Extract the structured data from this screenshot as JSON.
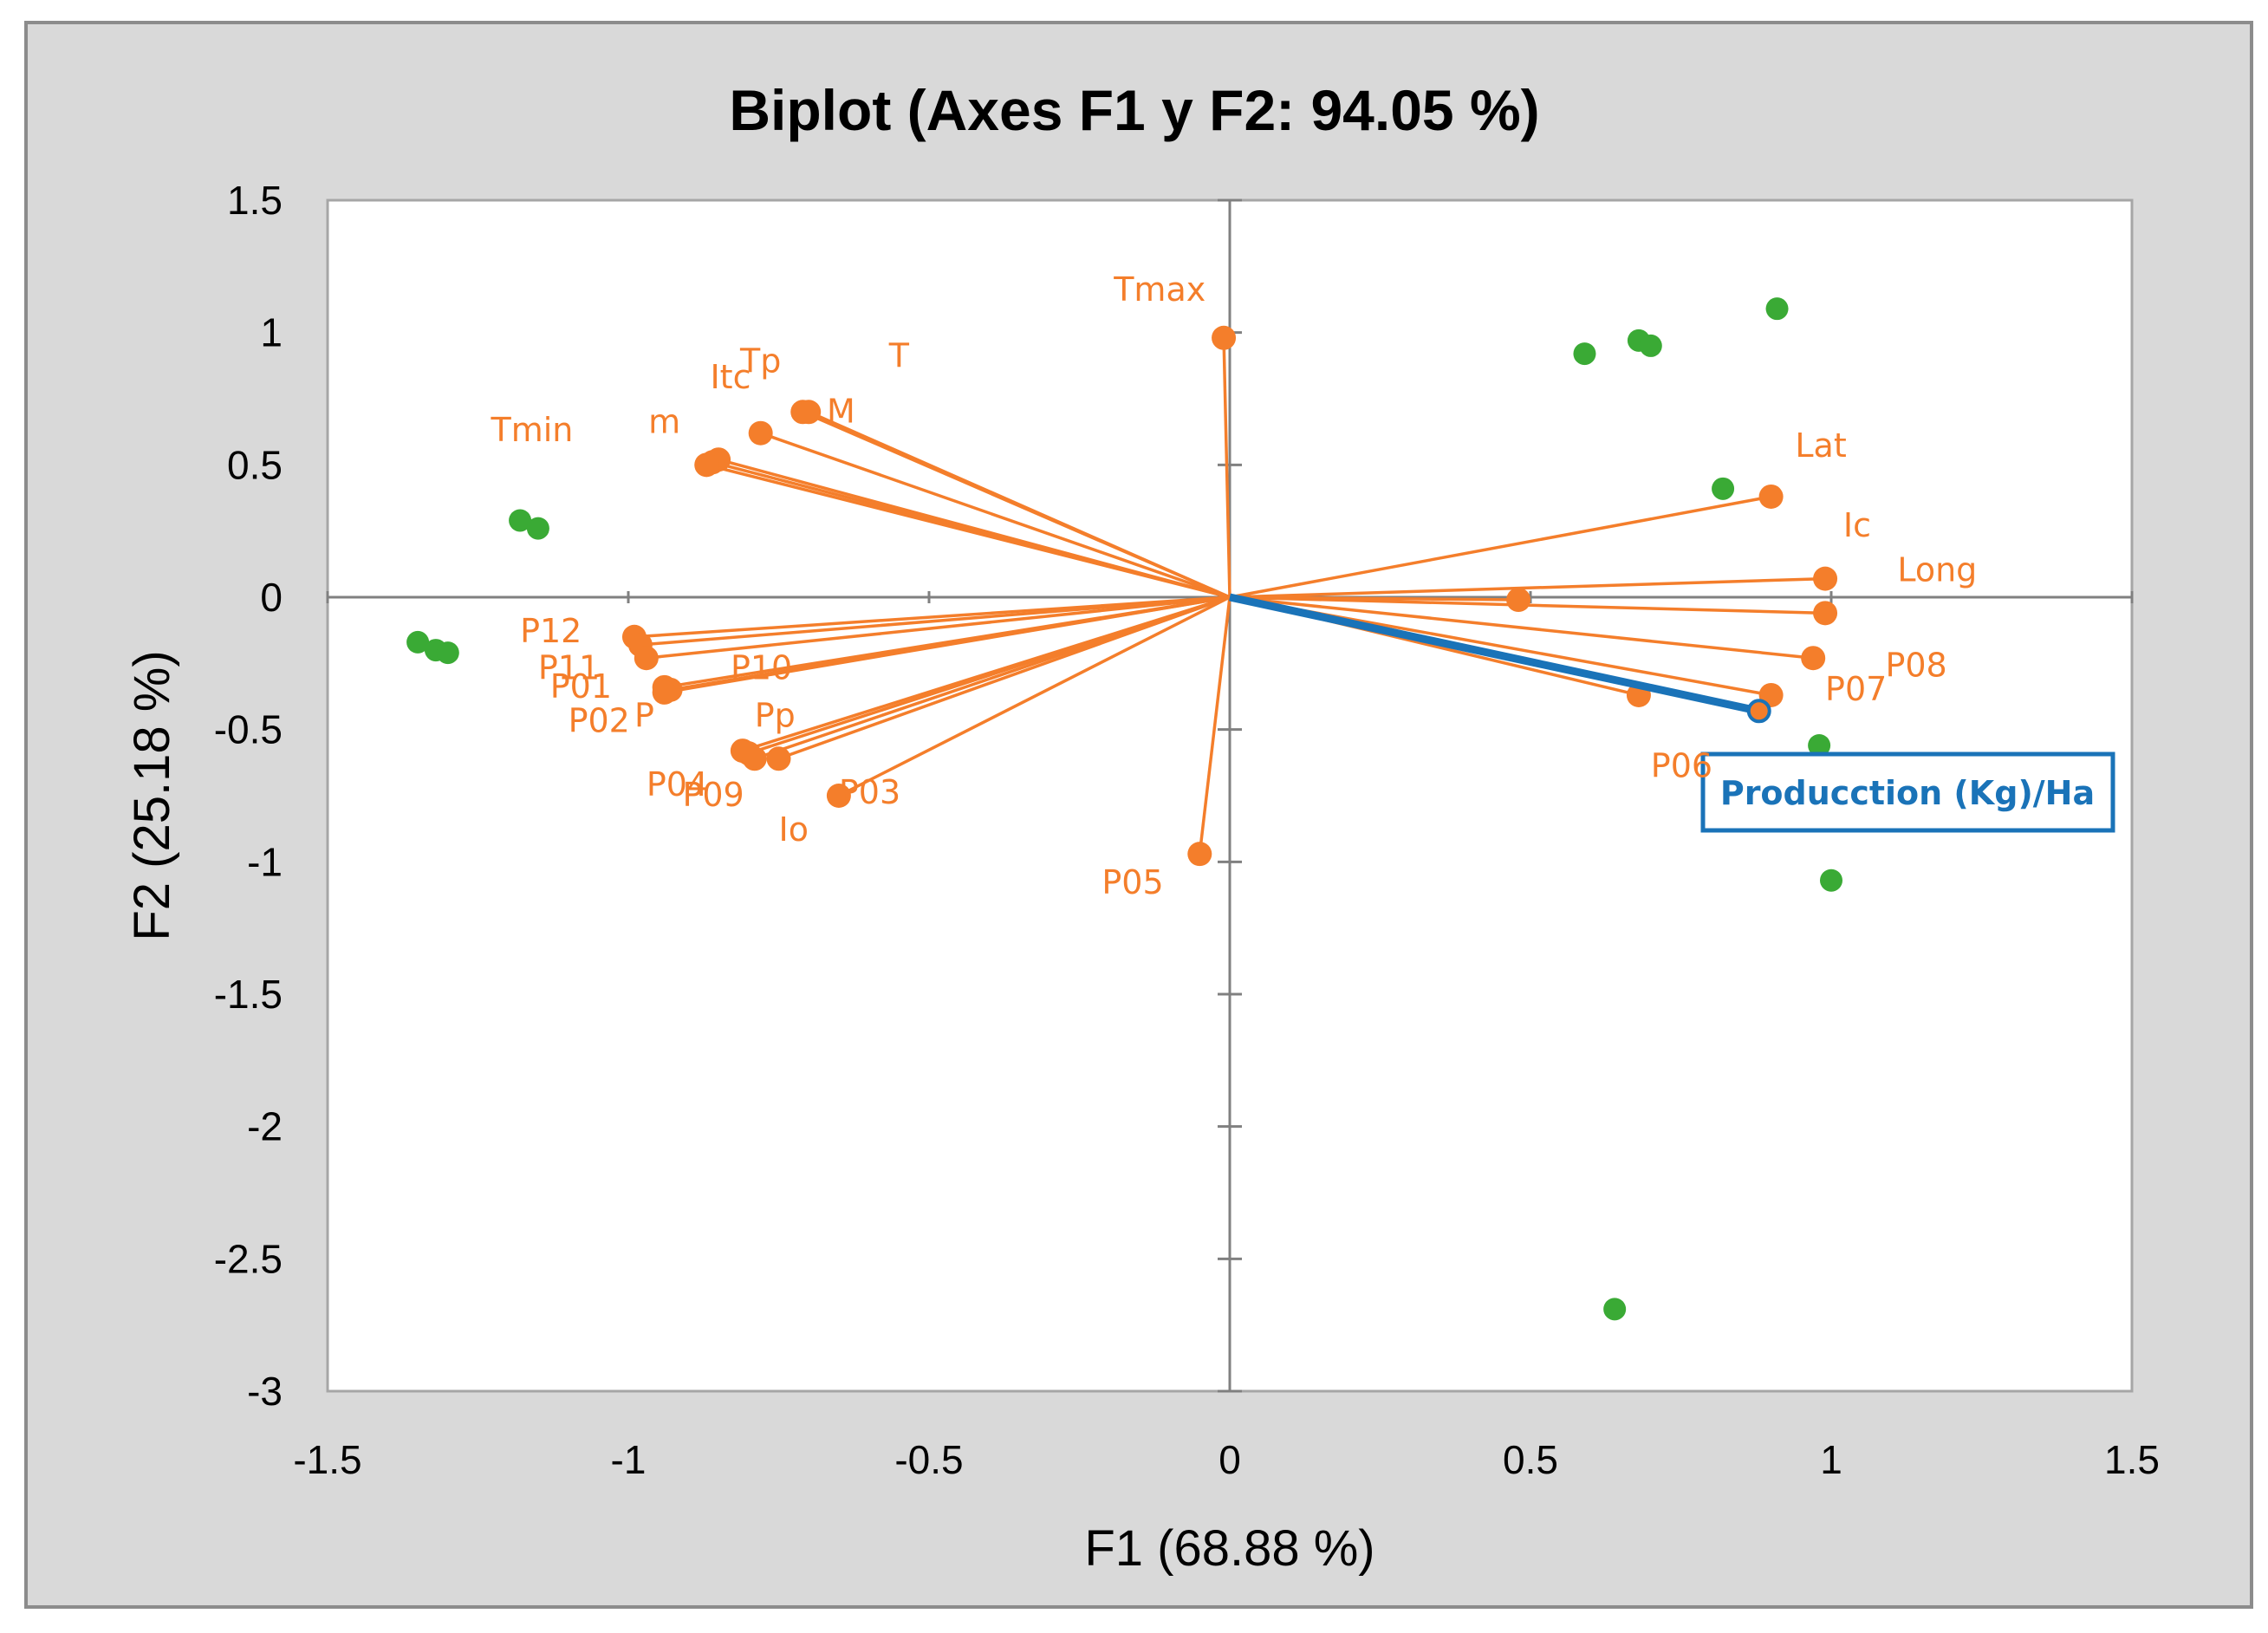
{
  "chart_data": {
    "type": "scatter",
    "title": "Biplot (Axes F1 y F2: 94.05 %)",
    "xlabel": "F1 (68.88 %)",
    "ylabel": "F2 (25.18 %)",
    "xlim": [
      -1.5,
      1.5
    ],
    "ylim": [
      -3,
      1.5
    ],
    "x_ticks": [
      -1.5,
      -1,
      -0.5,
      0,
      0.5,
      1,
      1.5
    ],
    "y_ticks": [
      -3,
      -2.5,
      -2,
      -1.5,
      -1,
      -0.5,
      0,
      0.5,
      1,
      1.5
    ],
    "x_tick_labels": [
      "-1.5",
      "-1",
      "-0.5",
      "0",
      "0.5",
      "1",
      "1.5"
    ],
    "y_tick_labels": [
      "-3",
      "-2.5",
      "-2",
      "-1.5",
      "-1",
      "-0.5",
      "0",
      "0.5",
      "1",
      "1.5"
    ],
    "grid": false,
    "colors": {
      "frame_background": "#d9d9d9",
      "plot_background": "#ffffff",
      "axis": "#808080",
      "variables": "#f47e2b",
      "observations": "#3aaa35",
      "production": "#1a73b8"
    },
    "variables": [
      {
        "name": "Tmax",
        "x": -0.01,
        "y": 0.98
      },
      {
        "name": "T",
        "x": -0.71,
        "y": 0.7
      },
      {
        "name": "M",
        "x": -0.7,
        "y": 0.7
      },
      {
        "name": "Tp",
        "x": -0.78,
        "y": 0.62
      },
      {
        "name": "Itc",
        "x": -0.85,
        "y": 0.52
      },
      {
        "name": "m",
        "x": -0.86,
        "y": 0.51
      },
      {
        "name": "Tmin",
        "x": -0.87,
        "y": 0.5
      },
      {
        "name": "Lat",
        "x": 0.9,
        "y": 0.38
      },
      {
        "name": "Ic",
        "x": 0.99,
        "y": 0.07
      },
      {
        "name": "Long",
        "x": 0.99,
        "y": -0.06
      },
      {
        "name": "P08",
        "x": 0.97,
        "y": -0.23
      },
      {
        "name": "P07",
        "x": 0.9,
        "y": -0.37
      },
      {
        "name": "P06",
        "x": 0.68,
        "y": -0.37
      },
      {
        "name": "",
        "x": 0.48,
        "y": -0.01
      },
      {
        "name": "P12",
        "x": -0.99,
        "y": -0.15
      },
      {
        "name": "P11",
        "x": -0.98,
        "y": -0.18
      },
      {
        "name": "P01",
        "x": -0.97,
        "y": -0.23
      },
      {
        "name": "P10",
        "x": -0.94,
        "y": -0.34
      },
      {
        "name": "P02",
        "x": -0.93,
        "y": -0.35
      },
      {
        "name": "P",
        "x": -0.94,
        "y": -0.36
      },
      {
        "name": "Pp",
        "x": -0.8,
        "y": -0.59
      },
      {
        "name": "P04",
        "x": -0.81,
        "y": -0.58
      },
      {
        "name": "P09",
        "x": -0.79,
        "y": -0.61
      },
      {
        "name": "Io",
        "x": -0.75,
        "y": -0.61
      },
      {
        "name": "P03",
        "x": -0.65,
        "y": -0.75
      },
      {
        "name": "P05",
        "x": -0.05,
        "y": -0.97
      }
    ],
    "observations": [
      {
        "x": -1.35,
        "y": -0.17
      },
      {
        "x": -1.32,
        "y": -0.2
      },
      {
        "x": -1.3,
        "y": -0.21
      },
      {
        "x": -1.18,
        "y": 0.29
      },
      {
        "x": -1.15,
        "y": 0.26
      },
      {
        "x": 0.59,
        "y": 0.92
      },
      {
        "x": 0.68,
        "y": 0.97
      },
      {
        "x": 0.7,
        "y": 0.95
      },
      {
        "x": 0.91,
        "y": 1.09
      },
      {
        "x": 0.82,
        "y": 0.41
      },
      {
        "x": 0.98,
        "y": -0.56
      },
      {
        "x": 1.0,
        "y": -1.07
      },
      {
        "x": 0.64,
        "y": -2.69
      }
    ],
    "supplementary": {
      "name": "Producction (Kg)/Ha",
      "x": 0.88,
      "y": -0.43
    }
  }
}
